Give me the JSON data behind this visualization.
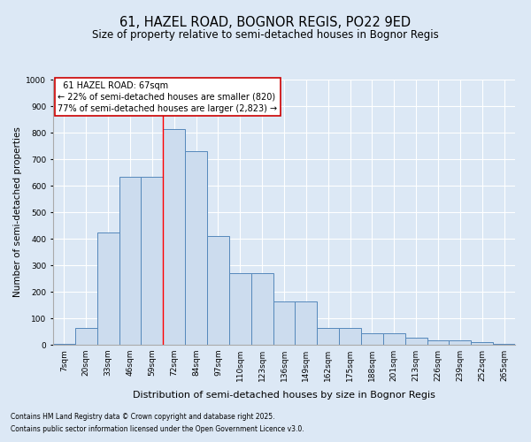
{
  "title1": "61, HAZEL ROAD, BOGNOR REGIS, PO22 9ED",
  "title2": "Size of property relative to semi-detached houses in Bognor Regis",
  "xlabel": "Distribution of semi-detached houses by size in Bognor Regis",
  "ylabel": "Number of semi-detached properties",
  "categories": [
    "7sqm",
    "20sqm",
    "33sqm",
    "46sqm",
    "59sqm",
    "72sqm",
    "84sqm",
    "97sqm",
    "110sqm",
    "123sqm",
    "136sqm",
    "149sqm",
    "162sqm",
    "175sqm",
    "188sqm",
    "201sqm",
    "213sqm",
    "226sqm",
    "239sqm",
    "252sqm",
    "265sqm"
  ],
  "values": [
    2,
    62,
    425,
    635,
    635,
    815,
    730,
    410,
    270,
    270,
    165,
    165,
    65,
    65,
    42,
    42,
    28,
    18,
    18,
    10,
    2
  ],
  "bar_color": "#ccdcee",
  "bar_edge_color": "#5588bb",
  "ylim": [
    0,
    1000
  ],
  "yticks": [
    0,
    100,
    200,
    300,
    400,
    500,
    600,
    700,
    800,
    900,
    1000
  ],
  "property_line_x": 4.5,
  "annotation_title": "61 HAZEL ROAD: 67sqm",
  "annotation_line1": "← 22% of semi-detached houses are smaller (820)",
  "annotation_line2": "77% of semi-detached houses are larger (2,823) →",
  "annotation_box_color": "#cc0000",
  "footnote1": "Contains HM Land Registry data © Crown copyright and database right 2025.",
  "footnote2": "Contains public sector information licensed under the Open Government Licence v3.0.",
  "bg_color": "#dce8f5",
  "plot_bg_color": "#dce8f5",
  "grid_color": "#ffffff",
  "title1_fontsize": 10.5,
  "title2_fontsize": 8.5,
  "xlabel_fontsize": 8,
  "ylabel_fontsize": 7.5,
  "tick_fontsize": 6.5,
  "annot_fontsize": 7,
  "footnote_fontsize": 5.5
}
